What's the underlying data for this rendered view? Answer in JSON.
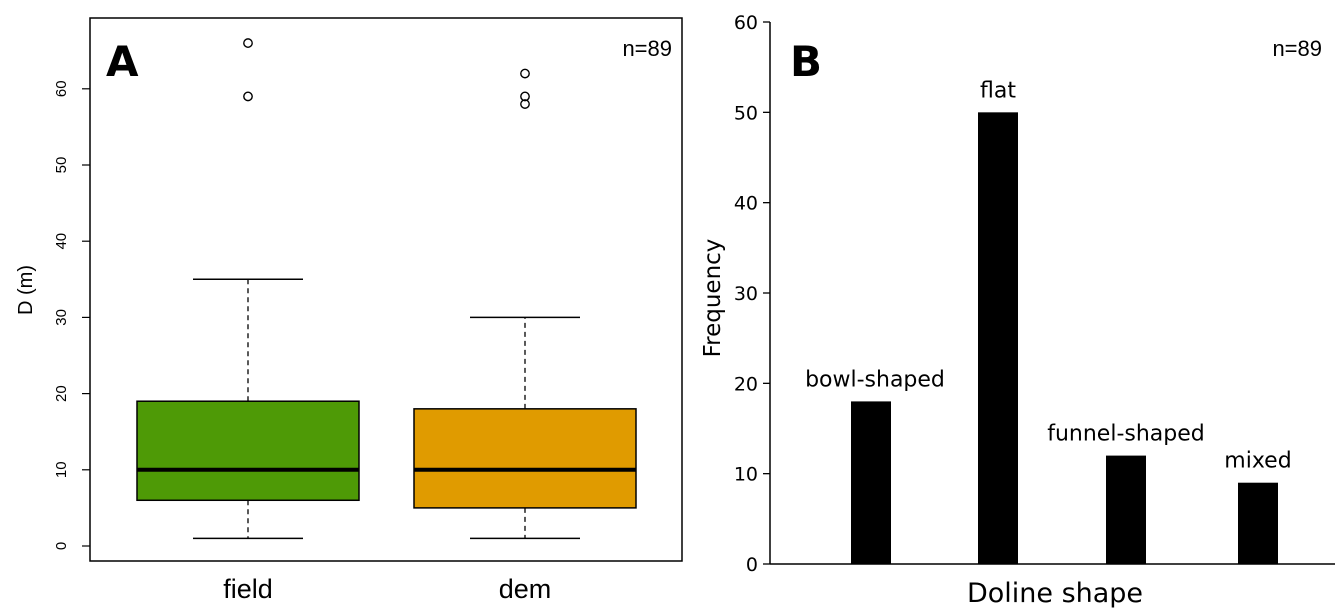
{
  "chart_data": [
    {
      "type": "box",
      "panel_label": "A",
      "annotation": "n=89",
      "ylabel": "D (m)",
      "xlabel": "",
      "ylim": [
        0,
        70
      ],
      "yticks": [
        0,
        10,
        20,
        30,
        40,
        50,
        60
      ],
      "grid": false,
      "categories": [
        "field",
        "dem"
      ],
      "series": [
        {
          "category": "field",
          "color": "#4e9a06",
          "whisker_low": 1,
          "q1": 6,
          "median": 10,
          "q3": 19,
          "whisker_high": 35,
          "outliers": [
            59,
            66
          ]
        },
        {
          "category": "dem",
          "color": "#e09b00",
          "whisker_low": 1,
          "q1": 5,
          "median": 10,
          "q3": 18,
          "whisker_high": 30,
          "outliers": [
            58,
            59,
            62
          ]
        }
      ]
    },
    {
      "type": "bar",
      "panel_label": "B",
      "annotation": "n=89",
      "xlabel": "Doline shape",
      "ylabel": "Frequency",
      "ylim": [
        0,
        60
      ],
      "yticks": [
        0,
        10,
        20,
        30,
        40,
        50,
        60
      ],
      "grid": false,
      "bar_color": "#000000",
      "categories": [
        "bowl-shaped",
        "flat",
        "funnel-shaped",
        "mixed"
      ],
      "values": [
        18,
        50,
        12,
        9
      ]
    }
  ]
}
